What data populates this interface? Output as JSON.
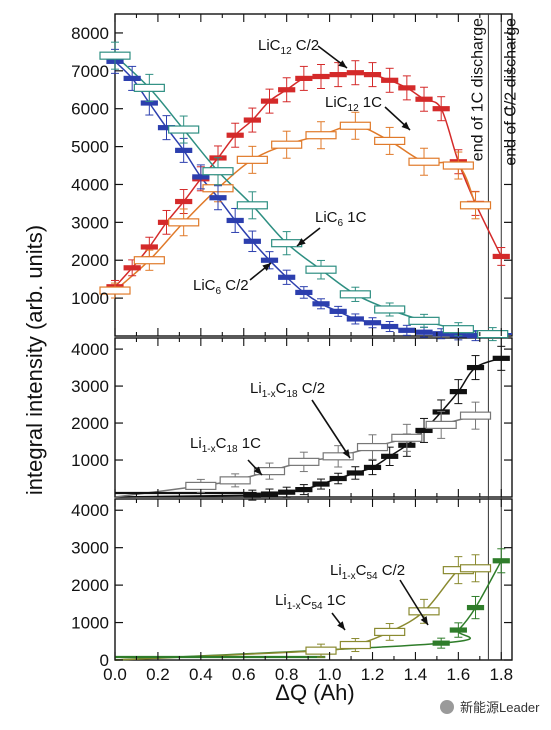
{
  "chart_data": [
    {
      "type": "scatter",
      "panel": "top",
      "ylim": [
        0,
        8500
      ],
      "yticks": [
        "1000",
        "2000",
        "3000",
        "4000",
        "5000",
        "6000",
        "7000",
        "8000"
      ],
      "series": [
        {
          "name": "LiC12 C/2",
          "color": "#d42a2a",
          "filled": true,
          "x": [
            0.0,
            0.08,
            0.16,
            0.24,
            0.32,
            0.4,
            0.48,
            0.56,
            0.64,
            0.72,
            0.8,
            0.88,
            0.96,
            1.04,
            1.12,
            1.2,
            1.28,
            1.36,
            1.44,
            1.52,
            1.6,
            1.68,
            1.8
          ],
          "y": [
            1300,
            1800,
            2350,
            3000,
            3550,
            4150,
            4700,
            5300,
            5700,
            6200,
            6500,
            6800,
            6850,
            6900,
            6950,
            6900,
            6750,
            6550,
            6250,
            6000,
            4600,
            3500,
            2100
          ]
        },
        {
          "name": "LiC12 1C",
          "color": "#e07a2a",
          "filled": false,
          "x": [
            0.0,
            0.16,
            0.32,
            0.48,
            0.64,
            0.8,
            0.96,
            1.12,
            1.28,
            1.44,
            1.6,
            1.68
          ],
          "y": [
            1200,
            2000,
            3000,
            3900,
            4650,
            5050,
            5300,
            5550,
            5150,
            4600,
            4500,
            3450
          ]
        },
        {
          "name": "LiC6 C/2",
          "color": "#2c3fae",
          "filled": true,
          "x": [
            0.0,
            0.08,
            0.16,
            0.24,
            0.32,
            0.4,
            0.48,
            0.56,
            0.64,
            0.72,
            0.8,
            0.88,
            0.96,
            1.04,
            1.12,
            1.2,
            1.28,
            1.36,
            1.44,
            1.52,
            1.6,
            1.68,
            1.76
          ],
          "y": [
            7250,
            6800,
            6150,
            5500,
            4900,
            4200,
            3650,
            3050,
            2500,
            2000,
            1550,
            1150,
            850,
            650,
            450,
            350,
            250,
            150,
            100,
            60,
            30,
            10,
            0
          ]
        },
        {
          "name": "LiC6 1C",
          "color": "#2e8f82",
          "filled": false,
          "x": [
            0.0,
            0.16,
            0.32,
            0.48,
            0.64,
            0.8,
            0.96,
            1.12,
            1.28,
            1.44,
            1.6,
            1.76
          ],
          "y": [
            7400,
            6550,
            5450,
            4350,
            3450,
            2450,
            1750,
            1100,
            700,
            400,
            180,
            50
          ]
        }
      ]
    },
    {
      "type": "scatter",
      "panel": "middle",
      "ylim": [
        0,
        4300
      ],
      "yticks": [
        "1000",
        "2000",
        "3000",
        "4000"
      ],
      "series": [
        {
          "name": "Li1-xC18 C/2",
          "color": "#111111",
          "filled": true,
          "x": [
            0.0,
            0.64,
            0.72,
            0.8,
            0.88,
            0.96,
            1.04,
            1.12,
            1.2,
            1.28,
            1.36,
            1.44,
            1.52,
            1.6,
            1.68,
            1.8
          ],
          "y": [
            0,
            50,
            80,
            130,
            200,
            350,
            500,
            650,
            800,
            1100,
            1400,
            1800,
            2300,
            2850,
            3500,
            3750
          ]
        },
        {
          "name": "Li1-xC18 1C",
          "color": "#777777",
          "filled": false,
          "x": [
            0.0,
            0.4,
            0.56,
            0.72,
            0.88,
            1.04,
            1.2,
            1.36,
            1.52,
            1.68
          ],
          "y": [
            0,
            300,
            450,
            700,
            950,
            1100,
            1350,
            1600,
            1950,
            2200
          ]
        }
      ]
    },
    {
      "type": "scatter",
      "panel": "bottom",
      "ylim": [
        0,
        4300
      ],
      "yticks": [
        "0",
        "1000",
        "2000",
        "3000",
        "4000"
      ],
      "xlim": [
        0,
        1.85
      ],
      "xticks": [
        "0.0",
        "0.2",
        "0.4",
        "0.6",
        "0.8",
        "1.0",
        "1.2",
        "1.4",
        "1.6",
        "1.8"
      ],
      "xlabel": "ΔQ (Ah)",
      "series": [
        {
          "name": "Li1-xC54 C/2",
          "color": "#2f7d2a",
          "filled": true,
          "x": [
            0.0,
            1.52,
            1.6,
            1.68,
            1.8
          ],
          "y": [
            0,
            450,
            800,
            1400,
            2650
          ]
        },
        {
          "name": "Li1-xC54 1C",
          "color": "#8a8a30",
          "filled": false,
          "x": [
            0.0,
            0.96,
            1.12,
            1.28,
            1.44,
            1.6,
            1.68
          ],
          "y": [
            0,
            250,
            400,
            750,
            1300,
            2400,
            2450
          ]
        }
      ]
    }
  ],
  "ylabel": "integral intensity (arb. units)",
  "labels": {
    "lic12_half": {
      "main": "LiC",
      "sub": "12",
      "suffix": " C/2"
    },
    "lic12_1c": {
      "main": "LiC",
      "sub": "12",
      "suffix": " 1C"
    },
    "lic6_1c": {
      "main": "LiC",
      "sub": "6",
      "suffix": " 1C"
    },
    "lic6_half": {
      "main": "LiC",
      "sub": "6",
      "suffix": " C/2"
    },
    "c18_half": {
      "main": "Li",
      "sub": "1-x",
      "mid": "C",
      "sub2": "18",
      "suffix": " C/2"
    },
    "c18_1c": {
      "main": "Li",
      "sub": "1-x",
      "mid": "C",
      "sub2": "18",
      "suffix": " 1C"
    },
    "c54_half": {
      "main": "Li",
      "sub": "1-x",
      "mid": "C",
      "sub2": "54",
      "suffix": " C/2"
    },
    "c54_1c": {
      "main": "Li",
      "sub": "1-x",
      "mid": "C",
      "sub2": "54",
      "suffix": " 1C"
    }
  },
  "vlines": [
    {
      "x": 1.74,
      "label": "end of 1C discharge"
    },
    {
      "x": 1.8,
      "label": "end of C/2 discharge"
    }
  ],
  "watermark": "新能源Leader"
}
